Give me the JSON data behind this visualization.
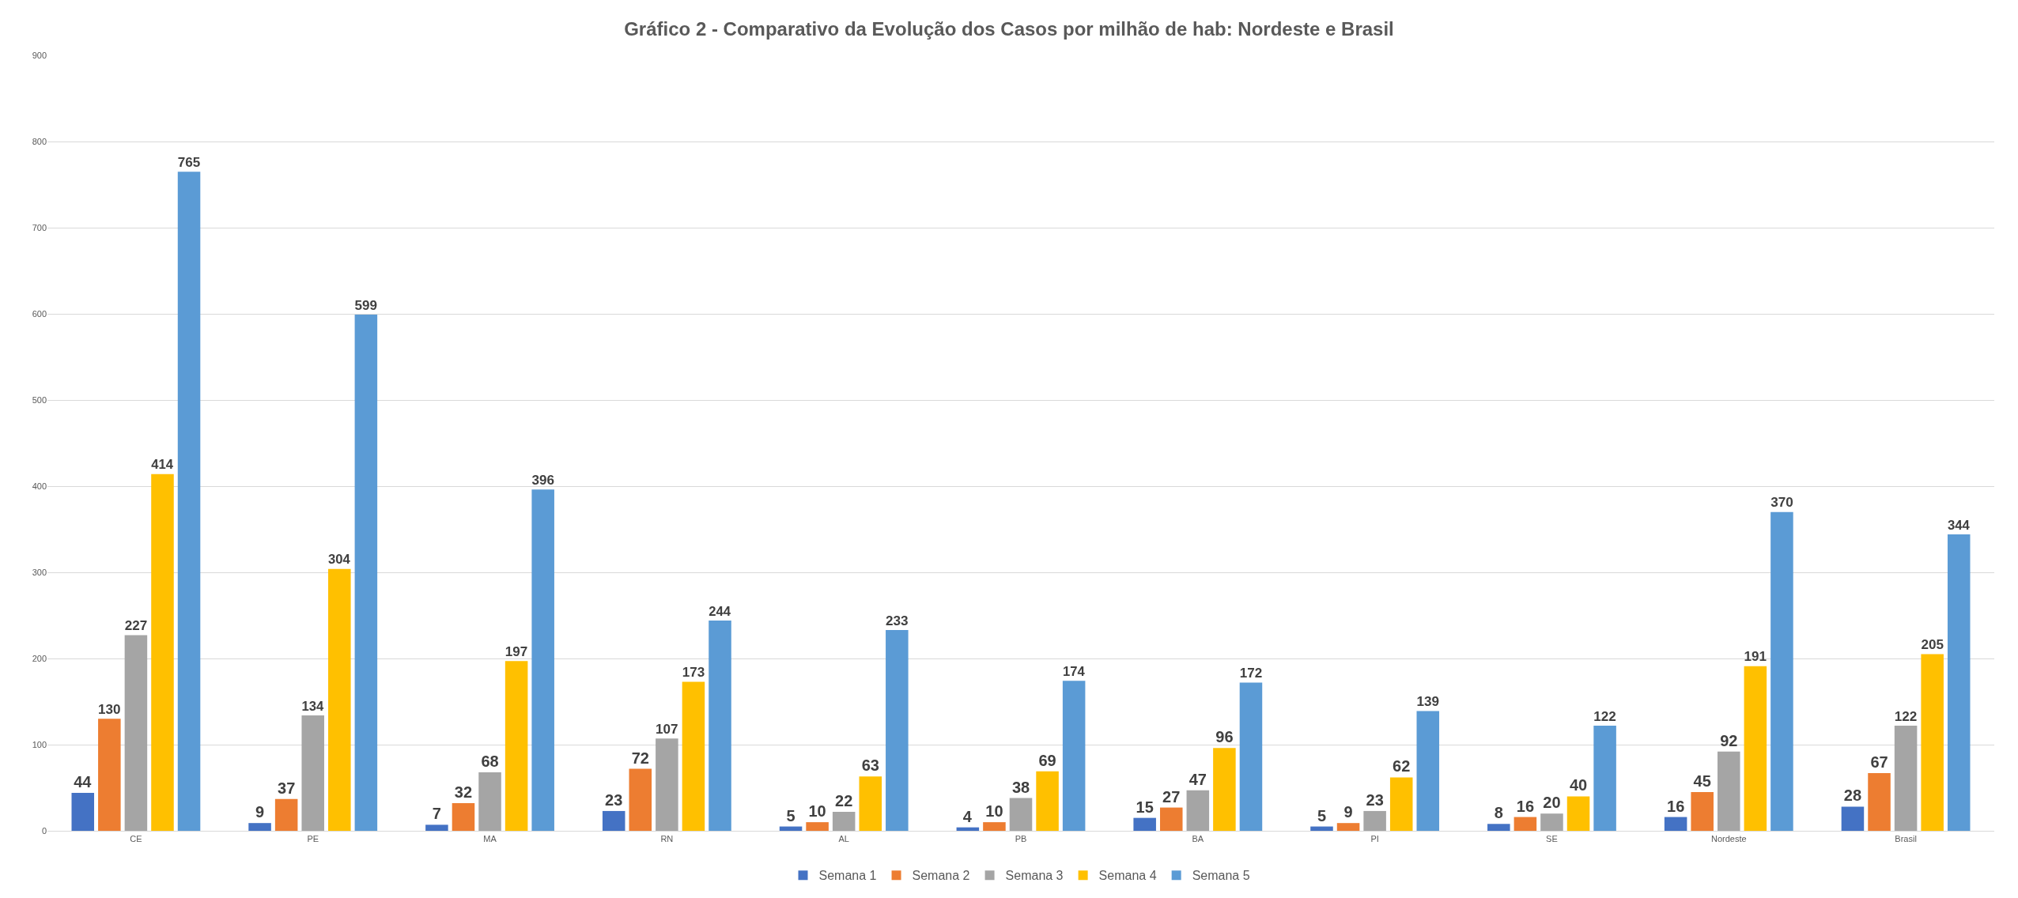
{
  "chart_data": {
    "type": "bar",
    "title": "Gráfico 2 - Comparativo da Evolução dos Casos por milhão de hab: Nordeste e Brasil",
    "categories": [
      "CE",
      "PE",
      "MA",
      "RN",
      "AL",
      "PB",
      "BA",
      "PI",
      "SE",
      "Nordeste",
      "Brasil"
    ],
    "series": [
      {
        "name": "Semana 1",
        "color": "#4472c4",
        "values": [
          44,
          9,
          7,
          23,
          5,
          4,
          15,
          5,
          8,
          16,
          28
        ]
      },
      {
        "name": "Semana 2",
        "color": "#ed7d31",
        "values": [
          130,
          37,
          32,
          72,
          10,
          10,
          27,
          9,
          16,
          45,
          67
        ]
      },
      {
        "name": "Semana 3",
        "color": "#a5a5a5",
        "values": [
          227,
          134,
          68,
          107,
          22,
          38,
          47,
          23,
          20,
          92,
          122
        ]
      },
      {
        "name": "Semana 4",
        "color": "#ffc000",
        "values": [
          414,
          304,
          197,
          173,
          63,
          69,
          96,
          62,
          40,
          191,
          205
        ]
      },
      {
        "name": "Semana 5",
        "color": "#5b9bd5",
        "values": [
          765,
          599,
          396,
          244,
          233,
          174,
          172,
          139,
          122,
          370,
          344
        ]
      }
    ],
    "ylim": [
      0,
      900
    ],
    "yticks": [
      0,
      100,
      200,
      300,
      400,
      500,
      600,
      700,
      800,
      900
    ],
    "grid": "y",
    "legend": "bottom",
    "data_labels": true
  }
}
